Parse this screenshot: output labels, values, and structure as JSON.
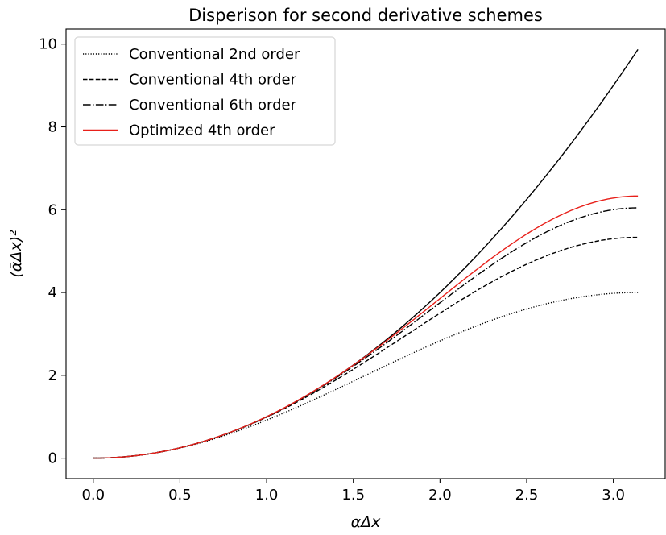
{
  "chart_data": {
    "type": "line",
    "title": "Disperison for second derivative schemes",
    "xlabel": "αΔx",
    "ylabel": "(ᾱΔx)²",
    "xlim": [
      -0.157,
      3.299
    ],
    "ylim": [
      -0.494,
      10.364
    ],
    "xticks": [
      0.0,
      0.5,
      1.0,
      1.5,
      2.0,
      2.5,
      3.0
    ],
    "xtick_labels": [
      "0.0",
      "0.5",
      "1.0",
      "1.5",
      "2.0",
      "2.5",
      "3.0"
    ],
    "yticks": [
      0,
      2,
      4,
      6,
      8,
      10
    ],
    "ytick_labels": [
      "0",
      "2",
      "4",
      "6",
      "8",
      "10"
    ],
    "grid": false,
    "legend_position": "top-left",
    "exact_curve": {
      "name": "",
      "color": "#000000",
      "linestyle": "solid",
      "x_range": [
        0,
        3.14159
      ],
      "formula": "y = x^2"
    },
    "series": [
      {
        "name": "Conventional 2nd order",
        "color": "#000000",
        "linestyle": "dotted",
        "x_range": [
          0,
          3.14159
        ],
        "formula": "y = 2 - 2 cos(x)"
      },
      {
        "name": "Conventional 4th order",
        "color": "#000000",
        "linestyle": "dashed",
        "x_range": [
          0,
          3.14159
        ],
        "formula": "y = 5/2 - 8/3 cos(x) + 1/6 cos(2x)"
      },
      {
        "name": "Conventional 6th order",
        "color": "#000000",
        "linestyle": "dashdot",
        "x_range": [
          0,
          3.14159
        ],
        "formula": "y = 49/18 - 3 cos(x) + 3/10 cos(2x) - 1/45 cos(3x)"
      },
      {
        "name": "Optimized 4th order",
        "color": "#e8201a",
        "linestyle": "solid",
        "x_range": [
          0,
          3.14159
        ],
        "endpoints": {
          "x": [
            0,
            3.14159
          ],
          "y": [
            0,
            6.33
          ]
        }
      }
    ]
  }
}
